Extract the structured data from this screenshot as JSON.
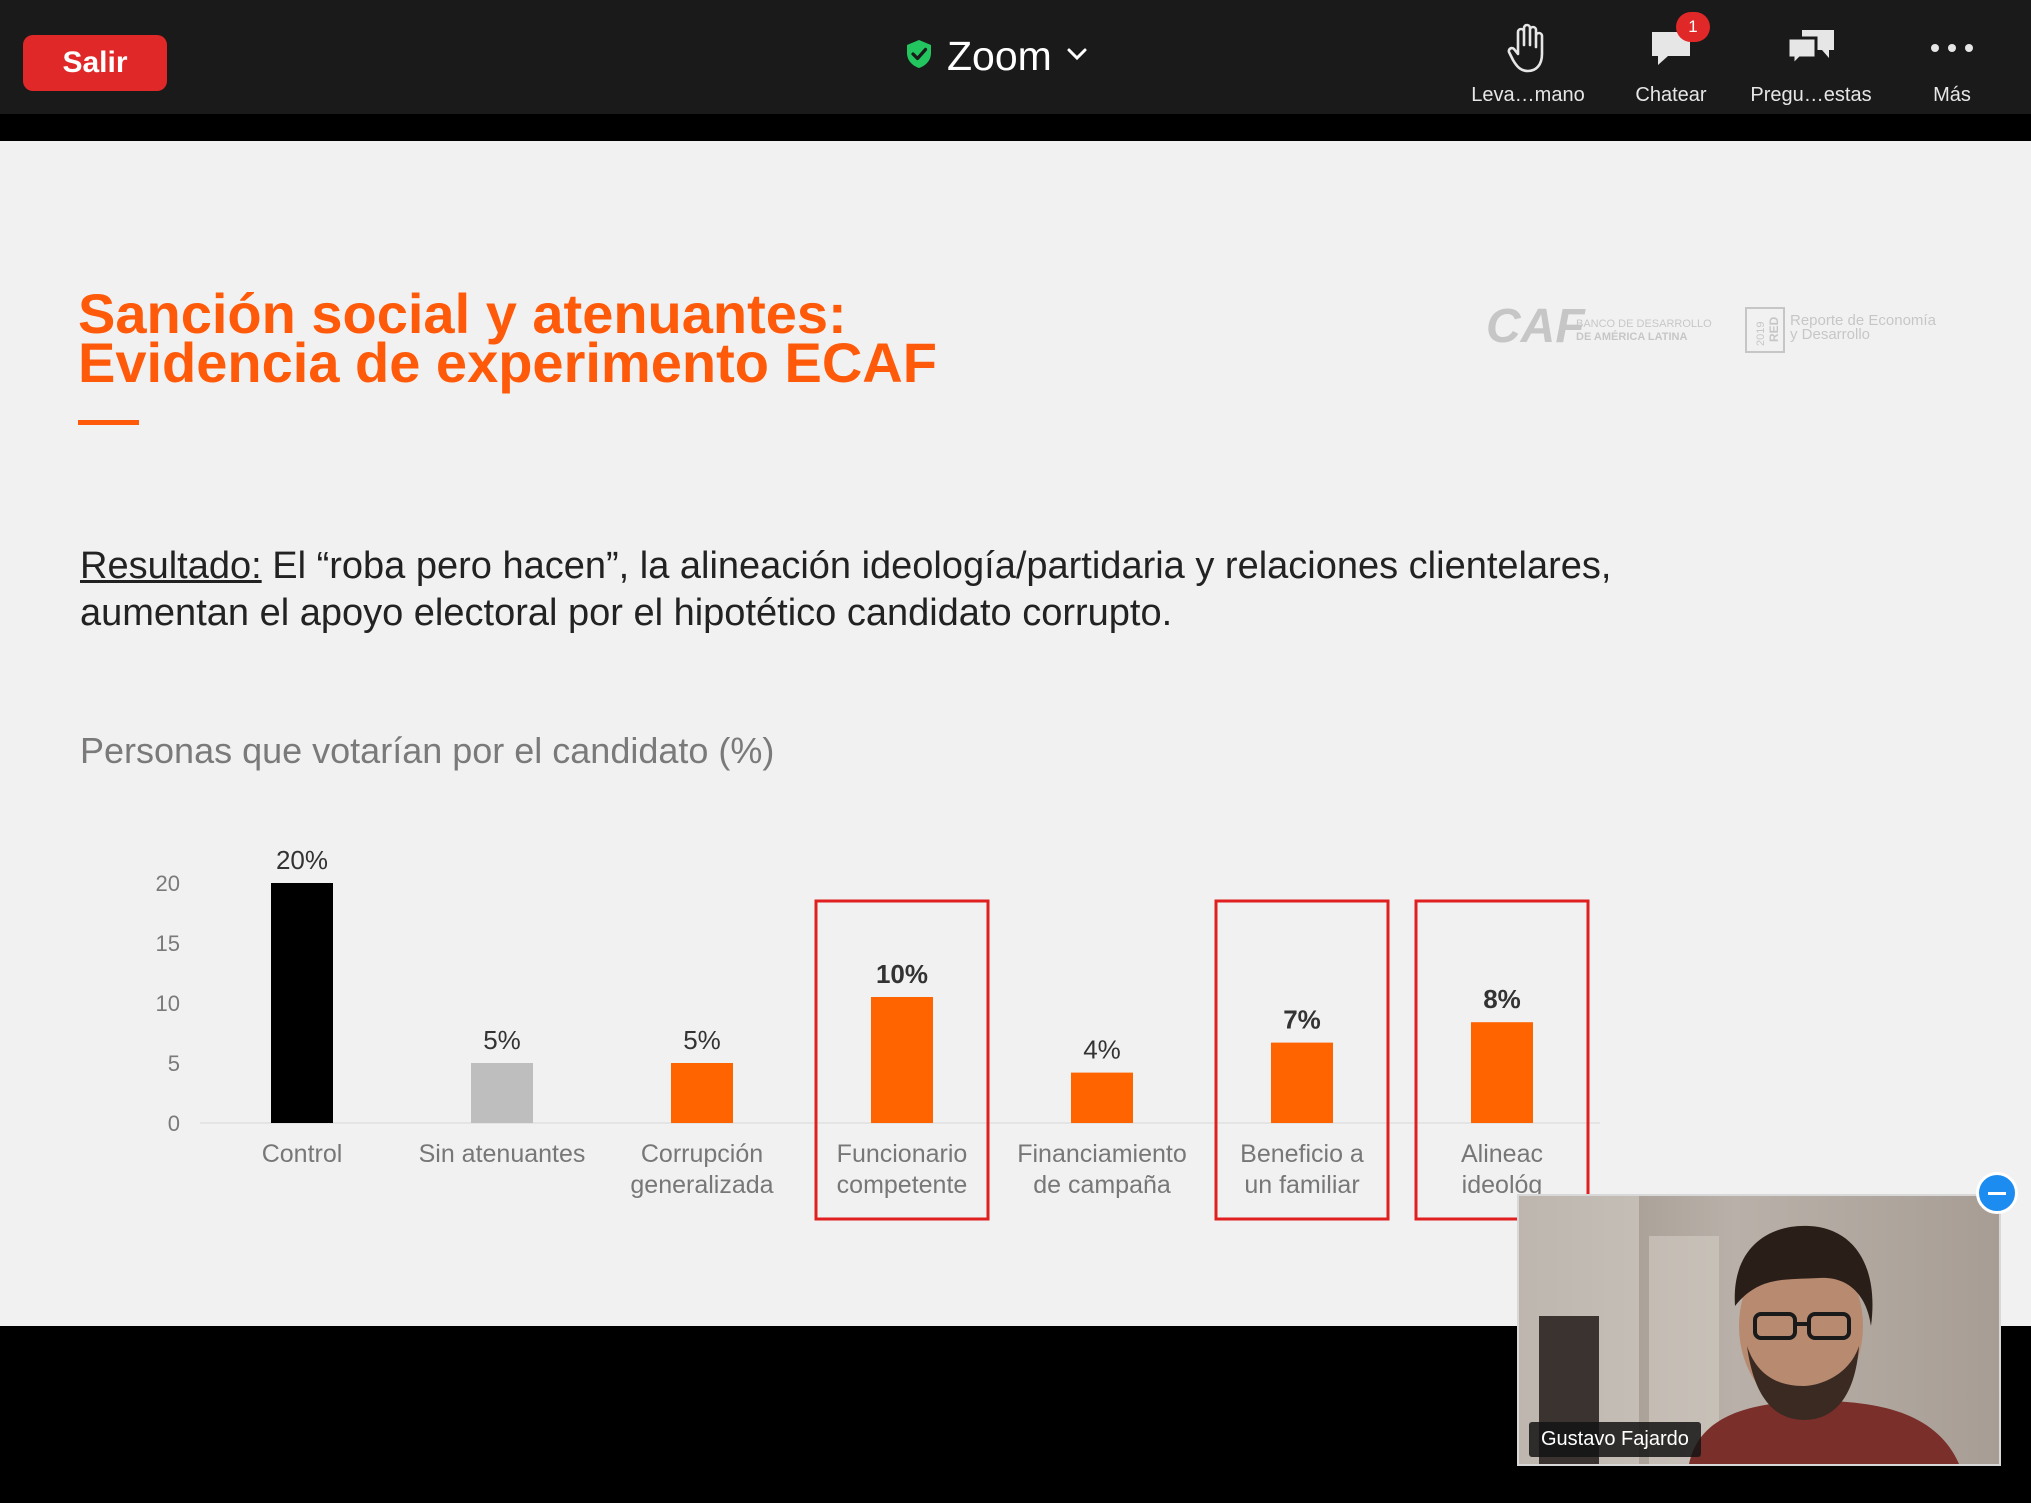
{
  "toolbar": {
    "exit_label": "Salir",
    "app_title": "Zoom",
    "items": [
      {
        "label": "Leva…mano",
        "icon": "raise-hand-icon"
      },
      {
        "label": "Chatear",
        "icon": "chat-icon",
        "badge": "1"
      },
      {
        "label": "Pregu…estas",
        "icon": "qa-icon"
      },
      {
        "label": "Más",
        "icon": "more-icon"
      }
    ]
  },
  "slide": {
    "title_line1": "Sanción social y atenuantes:",
    "title_line2": "Evidencia de experimento ECAF",
    "logo_caf": "CAF",
    "logo_caf_sub1": "BANCO DE DESARROLLO",
    "logo_caf_sub2": "DE AMÉRICA LATINA",
    "logo_red_year": "2019",
    "logo_red_mark": "RED",
    "logo_red_text1": "Reporte de Economía",
    "logo_red_text2": "y Desarrollo",
    "result_lead": "Resultado:",
    "result_text": " El “roba pero hacen”, la alineación ideología/partidaria y relaciones clientelares, aumentan el apoyo electoral por el hipotético candidato corrupto.",
    "chart_title": "Personas que votarían por el candidato (%)"
  },
  "chart_data": {
    "type": "bar",
    "title": "Personas que votarían por el candidato (%)",
    "categories": [
      [
        "Control"
      ],
      [
        "Sin atenuantes"
      ],
      [
        "Corrupción",
        "generalizada"
      ],
      [
        "Funcionario",
        "competente"
      ],
      [
        "Financiamiento",
        "de campaña"
      ],
      [
        "Beneficio a",
        "un familiar"
      ],
      [
        "Alineac",
        "ideológ"
      ]
    ],
    "values": [
      20,
      5,
      5,
      10.5,
      4.2,
      6.7,
      8.4
    ],
    "value_labels": [
      "20%",
      "5%",
      "5%",
      "10%",
      "4%",
      "7%",
      "8%"
    ],
    "bar_colors": [
      "#000000",
      "#bfbebe",
      "#ff6400",
      "#ff6400",
      "#ff6400",
      "#ff6400",
      "#ff6400"
    ],
    "highlighted": [
      false,
      false,
      false,
      true,
      false,
      true,
      true
    ],
    "highlight_color": "#e02020",
    "yticks": [
      0,
      5,
      10,
      15,
      20
    ],
    "ylim": [
      0,
      20
    ],
    "grid": false
  },
  "video": {
    "participant_name": "Gustavo Fajardo"
  }
}
